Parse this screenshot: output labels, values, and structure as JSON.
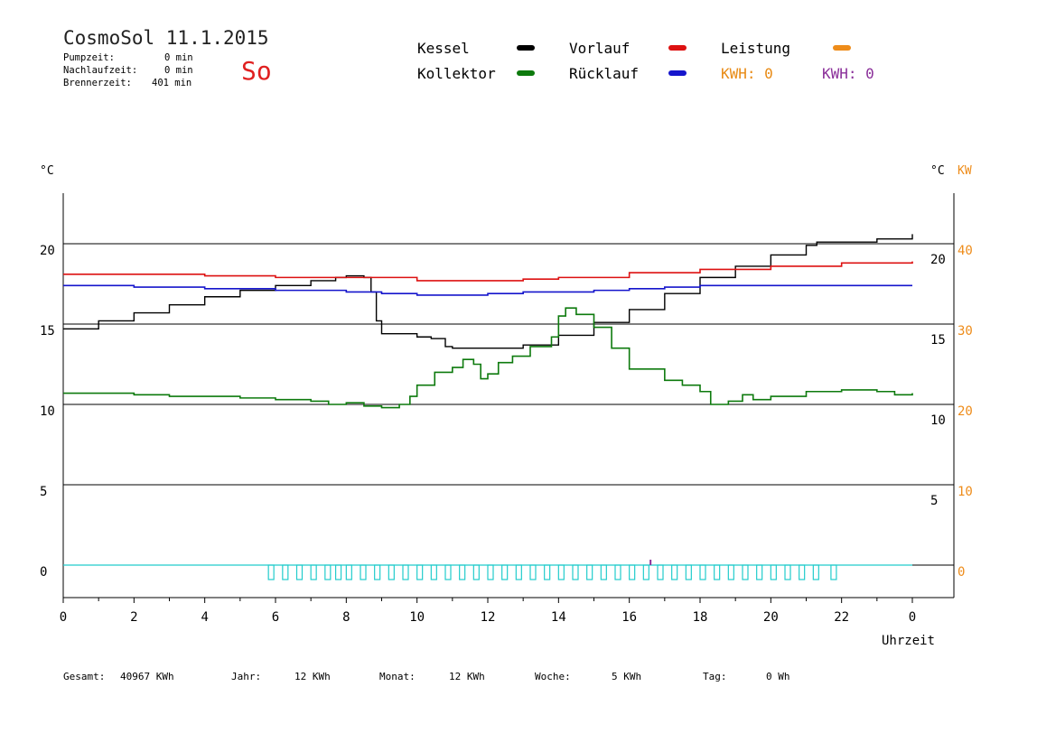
{
  "header": {
    "title": "CosmoSol 11.1.2015",
    "weekday": "So",
    "stats": [
      {
        "label": "Pumpzeit:",
        "value": "0 min"
      },
      {
        "label": "Nachlaufzeit:",
        "value": "0 min"
      },
      {
        "label": "Brennerzeit:",
        "value": "401 min"
      }
    ]
  },
  "legend": {
    "kessel": "Kessel",
    "kollektor": "Kollektor",
    "vorlauf": "Vorlauf",
    "ruecklauf": "Rücklauf",
    "leistung": "Leistung",
    "kwh_a": "KWH: 0",
    "kwh_b": "KWH: 0"
  },
  "footer": {
    "gesamt_label": "Gesamt:",
    "gesamt_value": "40967 KWh",
    "jahr_label": "Jahr:",
    "jahr_value": "12 KWh",
    "monat_label": "Monat:",
    "monat_value": "12 KWh",
    "woche_label": "Woche:",
    "woche_value": "5 KWh",
    "tag_label": "Tag:",
    "tag_value": "0 Wh"
  },
  "colors": {
    "kessel": "#000000",
    "kollektor": "#0d7a0d",
    "vorlauf": "#dd1111",
    "ruecklauf": "#1515cc",
    "leistung": "#ee8c1a",
    "pump": "#22cccc",
    "kwh_b": "#8a2e99"
  },
  "chart_data": {
    "type": "line",
    "xlabel": "Uhrzeit",
    "y_left_unit": "°C",
    "y_right_unit_temp": "°C",
    "y_right_unit_power": "KW",
    "xlim": [
      0,
      24
    ],
    "x_ticks": [
      "0",
      "2",
      "4",
      "6",
      "8",
      "10",
      "12",
      "14",
      "16",
      "18",
      "20",
      "22",
      "0"
    ],
    "y_left_ticks": [
      0,
      5,
      10,
      15,
      20
    ],
    "y_right_temp_ticks": [
      5,
      10,
      15,
      20
    ],
    "y_right_power_ticks": [
      0,
      10,
      20,
      30,
      40
    ],
    "ylim_left": [
      -2,
      23
    ],
    "grid": true,
    "series": [
      {
        "name": "Kessel",
        "color": "#000000",
        "x": [
          0,
          1,
          2,
          3,
          4,
          5,
          6,
          7,
          7.7,
          8,
          8.5,
          8.7,
          8.85,
          9,
          10,
          10.4,
          10.8,
          11,
          12,
          13,
          14,
          15,
          16,
          17,
          18,
          19,
          20,
          21,
          21.3,
          23,
          24
        ],
        "y": [
          14.7,
          15.2,
          15.7,
          16.2,
          16.7,
          17.1,
          17.4,
          17.7,
          17.9,
          18.0,
          17.9,
          17.0,
          15.2,
          14.4,
          14.2,
          14.1,
          13.6,
          13.5,
          13.5,
          13.7,
          14.3,
          15.1,
          15.9,
          16.9,
          17.9,
          18.6,
          19.3,
          19.9,
          20.1,
          20.3,
          20.6
        ]
      },
      {
        "name": "Vorlauf",
        "color": "#dd1111",
        "x": [
          0,
          2,
          4,
          6,
          8,
          10,
          11,
          12,
          13,
          14,
          16,
          18,
          20,
          22,
          24
        ],
        "y": [
          18.1,
          18.1,
          18.0,
          17.9,
          17.9,
          17.7,
          17.7,
          17.7,
          17.8,
          17.9,
          18.2,
          18.4,
          18.6,
          18.8,
          18.9
        ]
      },
      {
        "name": "Rücklauf",
        "color": "#1515cc",
        "x": [
          0,
          2,
          4,
          6,
          8,
          9,
          10,
          11,
          12,
          13,
          14,
          15,
          16,
          17,
          18,
          20,
          22,
          24
        ],
        "y": [
          17.4,
          17.3,
          17.2,
          17.1,
          17.0,
          16.9,
          16.8,
          16.8,
          16.9,
          17.0,
          17.0,
          17.1,
          17.2,
          17.3,
          17.4,
          17.4,
          17.4,
          17.4
        ],
        "note_values_unlabeled": true
      },
      {
        "name": "Kollektor",
        "color": "#0d7a0d",
        "x": [
          0,
          2,
          3,
          4,
          5,
          6,
          7,
          7.5,
          8,
          8.5,
          9,
          9.5,
          9.8,
          10,
          10.5,
          11,
          11.3,
          11.6,
          11.8,
          12,
          12.3,
          12.7,
          13.2,
          13.8,
          14,
          14.2,
          14.5,
          15,
          15.5,
          16,
          17,
          17.5,
          18,
          18.3,
          18.8,
          19.2,
          19.5,
          20,
          21,
          22,
          23,
          23.5,
          24
        ],
        "y": [
          10.7,
          10.6,
          10.5,
          10.5,
          10.4,
          10.3,
          10.2,
          10.0,
          10.1,
          9.9,
          9.8,
          10.0,
          10.5,
          11.2,
          12.0,
          12.3,
          12.8,
          12.5,
          11.6,
          11.9,
          12.6,
          13.0,
          13.6,
          14.2,
          15.5,
          16.0,
          15.6,
          14.8,
          13.5,
          12.2,
          11.5,
          11.2,
          10.8,
          10.0,
          10.2,
          10.6,
          10.3,
          10.5,
          10.8,
          10.9,
          10.8,
          10.6,
          10.7
        ]
      },
      {
        "name": "Leistung",
        "color": "#ee8c1a",
        "x": [
          0,
          24
        ],
        "y": [
          0,
          0
        ]
      }
    ],
    "pump_on_marks_hours": [
      5.8,
      6.2,
      6.6,
      7.0,
      7.4,
      7.7,
      8.0,
      8.4,
      8.8,
      9.2,
      9.6,
      10.0,
      10.4,
      10.8,
      11.2,
      11.6,
      12.0,
      12.4,
      12.8,
      13.2,
      13.6,
      14.0,
      14.4,
      14.8,
      15.2,
      15.6,
      16.0,
      16.4,
      16.8,
      17.2,
      17.6,
      18.0,
      18.4,
      18.8,
      19.2,
      19.6,
      20.0,
      20.4,
      20.8,
      21.2,
      21.7
    ]
  }
}
